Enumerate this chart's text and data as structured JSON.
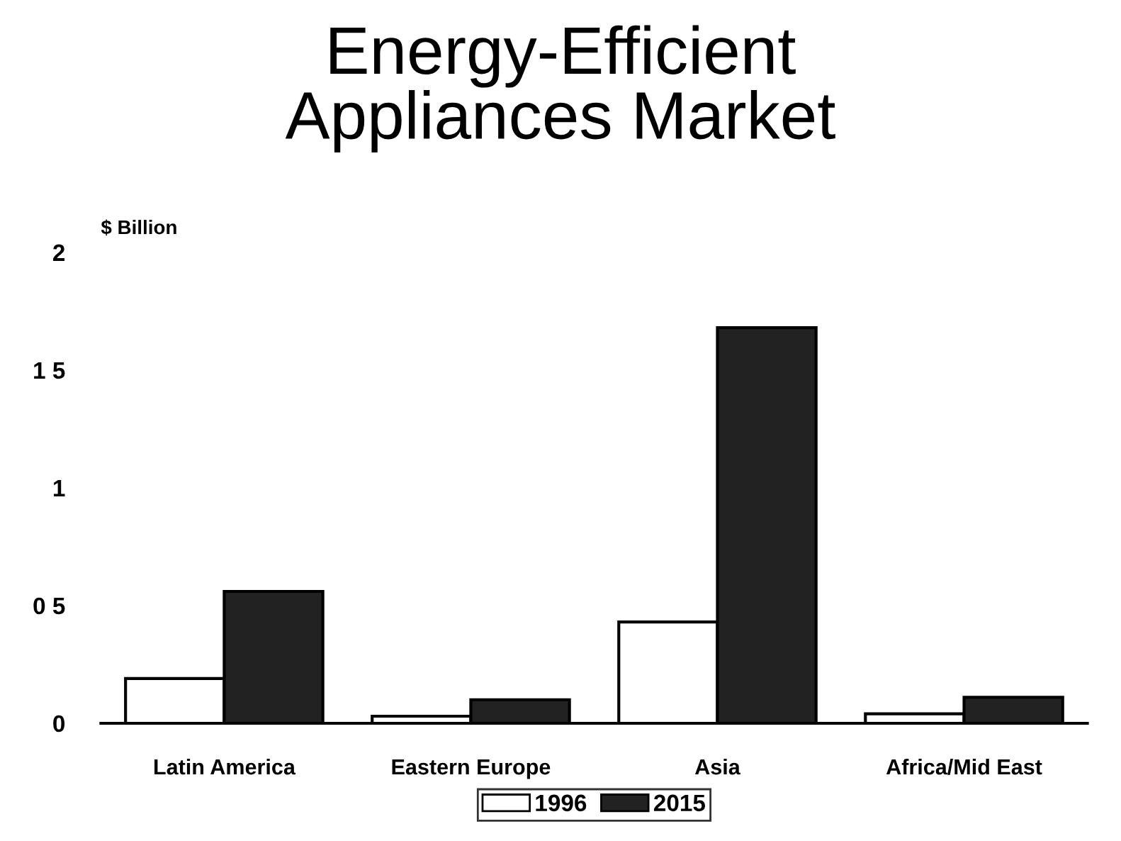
{
  "chart_data": {
    "type": "bar",
    "title": "Energy-Efficient\nAppliances Market",
    "ylabel": "$ Billion",
    "categories": [
      "Latin America",
      "Eastern Europe",
      "Asia",
      "Africa/Mid East"
    ],
    "series": [
      {
        "name": "1996",
        "color": "#ffffff",
        "values": [
          0.19,
          0.03,
          0.43,
          0.04
        ]
      },
      {
        "name": "2015",
        "color": "#222222",
        "values": [
          0.56,
          0.1,
          1.68,
          0.11
        ]
      }
    ],
    "ylim": [
      0,
      2
    ],
    "yticks": [
      0,
      {
        "value": 0.5,
        "label": "0 5"
      },
      1,
      {
        "value": 1.5,
        "label": "1 5"
      },
      2
    ],
    "grid": false,
    "legend": "bottom"
  }
}
